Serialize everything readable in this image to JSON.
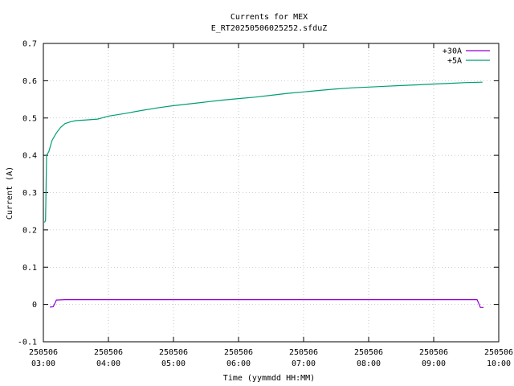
{
  "chart_data": {
    "type": "line",
    "title": "Currents for MEX",
    "subtitle": "E_RT20250506025252.sfduZ",
    "xlabel": "Time (yymmdd HH:MM)",
    "ylabel": "Current (A)",
    "xlim": [
      "03:00",
      "10:00"
    ],
    "ylim": [
      -0.1,
      0.7
    ],
    "yticks": [
      "-0.1",
      "0",
      "0.1",
      "0.2",
      "0.3",
      "0.4",
      "0.5",
      "0.6",
      "0.7"
    ],
    "xticks": [
      {
        "date": "250506",
        "time": "03:00"
      },
      {
        "date": "250506",
        "time": "04:00"
      },
      {
        "date": "250506",
        "time": "05:00"
      },
      {
        "date": "250506",
        "time": "06:00"
      },
      {
        "date": "250506",
        "time": "07:00"
      },
      {
        "date": "250506",
        "time": "08:00"
      },
      {
        "date": "250506",
        "time": "09:00"
      },
      {
        "date": "250506",
        "time": "10:00"
      }
    ],
    "grid": true,
    "legend": "top-right",
    "series": [
      {
        "name": "+30A",
        "color": "#9400d3",
        "points": [
          [
            "03:06",
            -0.007
          ],
          [
            "03:09",
            -0.006
          ],
          [
            "03:11",
            0.005
          ],
          [
            "03:12",
            0.012
          ],
          [
            "03:20",
            0.013
          ],
          [
            "03:40",
            0.013
          ],
          [
            "04:00",
            0.013
          ],
          [
            "04:30",
            0.013
          ],
          [
            "05:00",
            0.013
          ],
          [
            "05:30",
            0.013
          ],
          [
            "06:00",
            0.013
          ],
          [
            "06:30",
            0.013
          ],
          [
            "07:00",
            0.013
          ],
          [
            "07:30",
            0.013
          ],
          [
            "08:00",
            0.013
          ],
          [
            "08:30",
            0.013
          ],
          [
            "09:00",
            0.013
          ],
          [
            "09:30",
            0.013
          ],
          [
            "09:40",
            0.013
          ],
          [
            "09:42",
            0.0
          ],
          [
            "09:43",
            -0.008
          ],
          [
            "09:46",
            -0.008
          ]
        ]
      },
      {
        "name": "+5A",
        "color": "#009e73",
        "points": [
          [
            "03:01",
            0.22
          ],
          [
            "03:02",
            0.225
          ],
          [
            "03:03",
            0.4
          ],
          [
            "03:05",
            0.41
          ],
          [
            "03:08",
            0.44
          ],
          [
            "03:12",
            0.46
          ],
          [
            "03:16",
            0.475
          ],
          [
            "03:20",
            0.485
          ],
          [
            "03:25",
            0.49
          ],
          [
            "03:30",
            0.493
          ],
          [
            "03:40",
            0.495
          ],
          [
            "03:50",
            0.497
          ],
          [
            "04:00",
            0.505
          ],
          [
            "04:15",
            0.512
          ],
          [
            "04:30",
            0.52
          ],
          [
            "04:45",
            0.527
          ],
          [
            "05:00",
            0.533
          ],
          [
            "05:15",
            0.538
          ],
          [
            "05:30",
            0.543
          ],
          [
            "05:45",
            0.548
          ],
          [
            "06:00",
            0.552
          ],
          [
            "06:15",
            0.556
          ],
          [
            "06:30",
            0.561
          ],
          [
            "06:45",
            0.566
          ],
          [
            "07:00",
            0.57
          ],
          [
            "07:15",
            0.574
          ],
          [
            "07:30",
            0.578
          ],
          [
            "07:45",
            0.581
          ],
          [
            "08:00",
            0.583
          ],
          [
            "08:15",
            0.585
          ],
          [
            "08:30",
            0.587
          ],
          [
            "08:45",
            0.589
          ],
          [
            "09:00",
            0.591
          ],
          [
            "09:15",
            0.593
          ],
          [
            "09:30",
            0.595
          ],
          [
            "09:45",
            0.596
          ]
        ]
      }
    ]
  }
}
